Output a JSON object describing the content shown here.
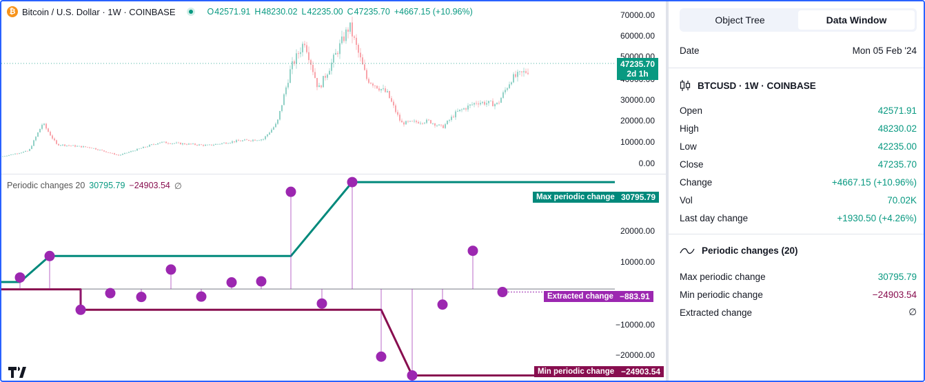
{
  "main_legend": {
    "symbol": "Bitcoin / U.S. Dollar · 1W · COINBASE",
    "o_label": "O",
    "o": "42571.91",
    "h_label": "H",
    "h": "48230.02",
    "l_label": "L",
    "l": "42235.00",
    "c_label": "C",
    "c": "47235.70",
    "change": "+4667.15 (+10.96%)"
  },
  "price_axis": [
    "70000.00",
    "60000.00",
    "50000.00",
    "40000.00",
    "30000.00",
    "20000.00",
    "10000.00",
    "0.00"
  ],
  "last_price": {
    "value": "47235.70",
    "countdown": "2d 1h"
  },
  "indicator_legend": {
    "name": "Periodic changes 20",
    "max": "30795.79",
    "min": "−24903.54",
    "extracted": "∅"
  },
  "ind_axis": [
    "20000.00",
    "10000.00",
    "0.00",
    "−10000.00",
    "−20000.00"
  ],
  "chips": {
    "max_name": "Max periodic change",
    "max_value": "30795.79",
    "extracted_name": "Extracted change",
    "extracted_value": "−883.91",
    "min_name": "Min periodic change",
    "min_value": "−24903.54"
  },
  "colors": {
    "teal": "#00897b",
    "maroon": "#880e4f",
    "purple": "#9c27b0",
    "up": "#089981",
    "down": "#f23645"
  },
  "chart_data": {
    "type": "line",
    "ylabel": "",
    "ylim": [
      -27000,
      33000
    ],
    "series": [
      {
        "name": "Max periodic change",
        "color": "#00897b",
        "points": [
          [
            0,
            2000
          ],
          [
            27,
            2000
          ],
          [
            70,
            9500
          ],
          [
            420,
            9500
          ],
          [
            509,
            30795.79
          ],
          [
            955,
            30795.79
          ]
        ]
      },
      {
        "name": "Min periodic change",
        "color": "#880e4f",
        "points": [
          [
            0,
            -100
          ],
          [
            115,
            -100
          ],
          [
            115,
            -6000
          ],
          [
            551,
            -6000
          ],
          [
            596,
            -24903.54
          ],
          [
            955,
            -24903.54
          ]
        ]
      },
      {
        "name": "Extracted change",
        "color": "#9c27b0",
        "points": [
          [
            27,
            3300
          ],
          [
            70,
            9500
          ],
          [
            115,
            -6000
          ],
          [
            158,
            -1200
          ],
          [
            203,
            -2300
          ],
          [
            246,
            5600
          ],
          [
            290,
            -2200
          ],
          [
            334,
            1900
          ],
          [
            377,
            2200
          ],
          [
            420,
            28000
          ],
          [
            465,
            -4200
          ],
          [
            509,
            30795.79
          ],
          [
            551,
            -19500
          ],
          [
            596,
            -24903.54
          ],
          [
            640,
            -4500
          ],
          [
            684,
            11000
          ],
          [
            727,
            -883.91
          ]
        ]
      }
    ]
  },
  "panel": {
    "tab_object_tree": "Object Tree",
    "tab_data_window": "Data Window",
    "date_label": "Date",
    "date_value": "Mon 05 Feb '24",
    "symbol_title": "BTCUSD · 1W · COINBASE",
    "rows": [
      {
        "label": "Open",
        "value": "42571.91"
      },
      {
        "label": "High",
        "value": "48230.02"
      },
      {
        "label": "Low",
        "value": "42235.00"
      },
      {
        "label": "Close",
        "value": "47235.70"
      },
      {
        "label": "Change",
        "value": "+4667.15 (+10.96%)"
      },
      {
        "label": "Vol",
        "value": "70.02K"
      },
      {
        "label": "Last day change",
        "value": "+1930.50 (+4.26%)"
      }
    ],
    "indicator_title": "Periodic changes (20)",
    "ind_rows": [
      {
        "label": "Max periodic change",
        "value": "30795.79"
      },
      {
        "label": "Min periodic change",
        "value": "−24903.54"
      },
      {
        "label": "Extracted change",
        "value": "∅"
      }
    ]
  }
}
